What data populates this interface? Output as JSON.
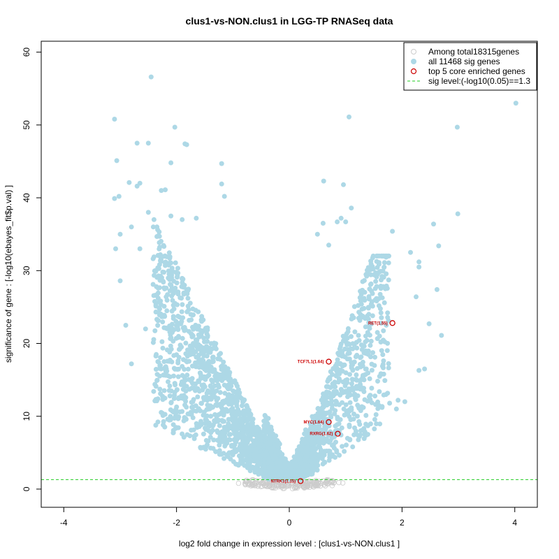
{
  "chart_data": {
    "type": "scatter",
    "title": "clus1-vs-NON.clus1 in LGG-TP RNASeq data",
    "xlabel": "log2 fold change in expression level : [clus1-vs-NON.clus1 ]",
    "ylabel": "significance of gene : [-log10(ebayes_fit$p.val) ]",
    "xlim": [
      -4.4,
      4.4
    ],
    "ylim": [
      -2.5,
      61.5
    ],
    "x_ticks": [
      -4,
      -2,
      0,
      2,
      4
    ],
    "y_ticks": [
      0,
      10,
      20,
      30,
      40,
      50,
      60
    ],
    "sig_level": 1.3,
    "grid": false,
    "legend_position": "top-right",
    "legend": [
      {
        "label": "Among total18315genes",
        "marker": "open-circle",
        "color": "#cccccc"
      },
      {
        "label": "all 11468 sig genes",
        "marker": "filled-circle",
        "color": "#add8e6"
      },
      {
        "label": "top 5 core enriched genes",
        "marker": "open-circle",
        "color": "#cc0000"
      },
      {
        "label": "sig level:(-log10(0.05)==1.3",
        "marker": "dashed-line",
        "color": "#22cc22"
      }
    ],
    "colors": {
      "nonsig": "#cccccc",
      "sig": "#add8e6",
      "core": "#cc0000",
      "threshold": "#22cc22"
    },
    "core_genes": [
      {
        "label": "RET(1.55)",
        "x": 1.83,
        "y": 22.8
      },
      {
        "label": "TCF7L1(1.64)",
        "x": 0.7,
        "y": 17.5
      },
      {
        "label": "MYC(1.64)",
        "x": 0.7,
        "y": 9.2
      },
      {
        "label": "RXRG(1.62)",
        "x": 0.86,
        "y": 7.6
      },
      {
        "label": "NTRK1(1.15)",
        "x": 0.2,
        "y": 1.1
      }
    ],
    "outlier_points": [
      [
        -2.45,
        56.6
      ],
      [
        4.02,
        53.0
      ],
      [
        -3.1,
        50.8
      ],
      [
        1.06,
        51.1
      ],
      [
        -2.03,
        49.7
      ],
      [
        2.98,
        49.7
      ],
      [
        -3.06,
        45.1
      ],
      [
        -2.7,
        47.5
      ],
      [
        -2.5,
        47.5
      ],
      [
        -2.1,
        44.8
      ],
      [
        -1.2,
        44.7
      ],
      [
        -1.85,
        47.4
      ],
      [
        -1.82,
        47.3
      ],
      [
        -2.84,
        42.1
      ],
      [
        -2.7,
        41.6
      ],
      [
        -2.65,
        42.0
      ],
      [
        -3.1,
        39.9
      ],
      [
        -3.02,
        40.2
      ],
      [
        -2.27,
        41.0
      ],
      [
        -2.2,
        41.1
      ],
      [
        -1.2,
        41.9
      ],
      [
        -1.15,
        40.2
      ],
      [
        0.61,
        42.3
      ],
      [
        0.96,
        41.8
      ],
      [
        2.99,
        37.8
      ],
      [
        -3.08,
        33.0
      ],
      [
        -3.0,
        35.0
      ],
      [
        -2.8,
        36.0
      ],
      [
        -2.5,
        38.0
      ],
      [
        -2.4,
        37.0
      ],
      [
        -2.1,
        37.5
      ],
      [
        -1.9,
        37.0
      ],
      [
        -1.65,
        37.2
      ],
      [
        1.1,
        38.6
      ],
      [
        0.92,
        37.2
      ],
      [
        2.56,
        36.4
      ],
      [
        -3.0,
        28.6
      ],
      [
        -2.9,
        22.5
      ],
      [
        -2.8,
        17.2
      ],
      [
        -2.55,
        22.0
      ],
      [
        -2.65,
        33.0
      ],
      [
        -2.1,
        30.0
      ],
      [
        1.83,
        35.4
      ],
      [
        2.15,
        32.5
      ],
      [
        2.65,
        33.4
      ],
      [
        2.3,
        31.2
      ],
      [
        2.3,
        30.5
      ],
      [
        2.48,
        22.7
      ],
      [
        2.7,
        21.1
      ],
      [
        2.62,
        27.4
      ],
      [
        2.25,
        26.4
      ],
      [
        2.3,
        16.3
      ],
      [
        2.4,
        16.5
      ],
      [
        1.93,
        12.2
      ],
      [
        2.05,
        12.0
      ],
      [
        1.78,
        11.8
      ],
      [
        1.9,
        11.0
      ],
      [
        0.7,
        33.5
      ],
      [
        0.6,
        36.5
      ],
      [
        0.85,
        36.7
      ],
      [
        1.0,
        36.7
      ],
      [
        0.5,
        35.0
      ]
    ]
  }
}
